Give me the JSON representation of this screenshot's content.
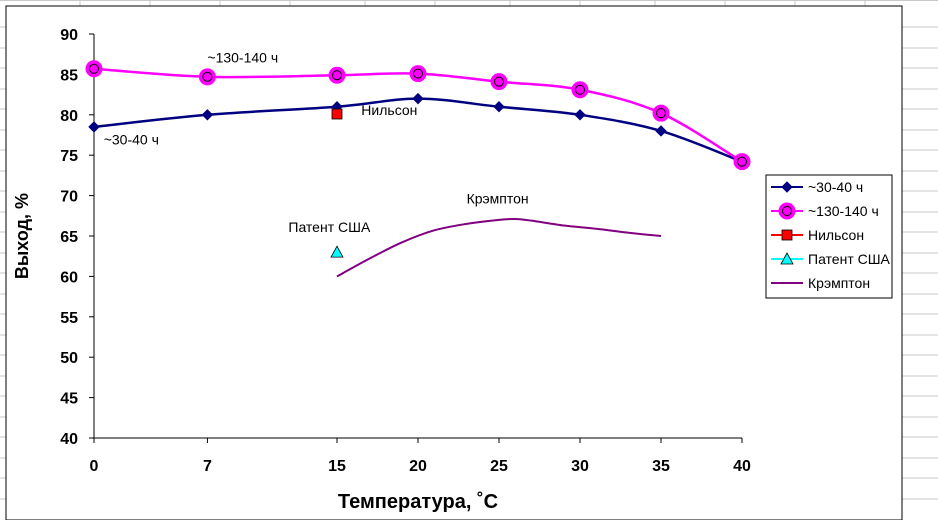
{
  "chart_data": {
    "type": "line",
    "xlabel": "Температура, ˚С",
    "ylabel": "Выход, %",
    "ylim": [
      40,
      90
    ],
    "yticks": [
      40,
      45,
      50,
      55,
      60,
      65,
      70,
      75,
      80,
      85,
      90
    ],
    "categories": [
      "0",
      "7",
      "15",
      "20",
      "25",
      "30",
      "35",
      "40"
    ],
    "legend_position": "right",
    "grid": false,
    "series": [
      {
        "name": "~30-40 ч",
        "color": "#000080",
        "marker": "diamond",
        "x": [
          0,
          7,
          15,
          20,
          25,
          30,
          35,
          40
        ],
        "values": [
          78.5,
          80,
          81,
          82,
          81,
          80,
          78,
          74.2
        ]
      },
      {
        "name": "~130-140 ч",
        "color": "#FF00FF",
        "marker": "circle",
        "x": [
          0,
          7,
          15,
          20,
          25,
          30,
          35,
          40
        ],
        "values": [
          85.7,
          84.7,
          84.9,
          85.1,
          84.1,
          83.1,
          80.2,
          74.2
        ]
      },
      {
        "name": "Нильсон",
        "color": "#FF0000",
        "marker": "square",
        "x": [
          15
        ],
        "values": [
          80.1
        ]
      },
      {
        "name": "Патент США",
        "color": "#00FFFF",
        "marker": "triangle",
        "x": [
          15
        ],
        "values": [
          63
        ]
      },
      {
        "name": "Крэмптон",
        "color": "#800080",
        "marker": "none",
        "x": [
          15,
          17,
          19,
          21,
          23,
          25,
          26,
          27,
          29,
          31,
          33,
          35
        ],
        "values": [
          60,
          62.2,
          64.2,
          65.7,
          66.5,
          67,
          67.1,
          66.9,
          66.3,
          65.9,
          65.4,
          65
        ]
      }
    ],
    "annotations": [
      {
        "text": "~130-140 ч",
        "x": 7,
        "y": 86.5
      },
      {
        "text": "~30-40 ч",
        "x": 0.6,
        "y": 76.3
      },
      {
        "text": "Нильсон",
        "x": 16.5,
        "y": 80
      },
      {
        "text": "Патент США",
        "x": 12,
        "y": 65.5
      },
      {
        "text": "Крэмптон",
        "x": 23,
        "y": 69
      }
    ]
  }
}
